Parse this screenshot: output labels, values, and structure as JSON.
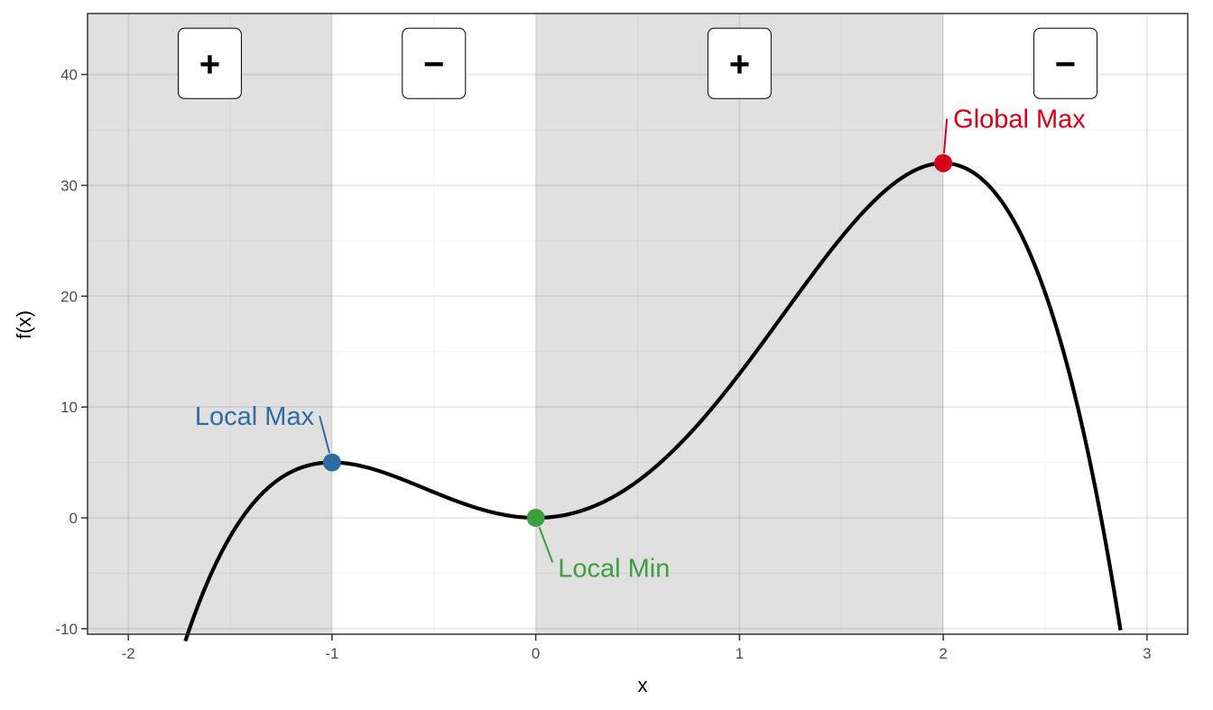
{
  "chart_data": {
    "type": "line",
    "title": "",
    "xlabel": "x",
    "ylabel": "f(x)",
    "xlim": [
      -2.2,
      3.2
    ],
    "ylim": [
      -10.5,
      45.5
    ],
    "x_ticks": [
      -2,
      -1,
      0,
      1,
      2,
      3
    ],
    "x_tick_labels": [
      "-2",
      "-1",
      "0",
      "1",
      "2",
      "3"
    ],
    "y_ticks": [
      -10,
      0,
      10,
      20,
      30,
      40
    ],
    "y_tick_labels": [
      "-10",
      "0",
      "10",
      "20",
      "30",
      "40"
    ],
    "grid": true,
    "function": "f(x) = -3x^4 + 4x^3 + 12x^2",
    "curve_x_range": [
      -1.72,
      2.87
    ],
    "regions": [
      {
        "x_start": -2.2,
        "x_end": -1,
        "sign": "+",
        "shaded": true
      },
      {
        "x_start": -1,
        "x_end": 0,
        "sign": "−",
        "shaded": false
      },
      {
        "x_start": 0,
        "x_end": 2,
        "sign": "+",
        "shaded": true
      },
      {
        "x_start": 2,
        "x_end": 3.2,
        "sign": "−",
        "shaded": false
      }
    ],
    "sign_box_x": [
      -1.6,
      -0.5,
      1,
      2.6
    ],
    "sign_box_y": 41,
    "points": [
      {
        "label": "Local Max",
        "x": -1,
        "y": 5,
        "color": "#2e6da4",
        "label_x": -1.07,
        "label_y": 9.2
      },
      {
        "label": "Local Min",
        "x": 0,
        "y": 0,
        "color": "#3c9e3c",
        "label_x": 0.1,
        "label_y": -4.5
      },
      {
        "label": "Global Max",
        "x": 2,
        "y": 32,
        "color": "#d7001a",
        "label_x": 2.04,
        "label_y": 36
      }
    ],
    "colors": {
      "curve": "#000000",
      "shade": "#e0e0e0",
      "grid": "#ebebeb",
      "panel_border": "#333333"
    }
  }
}
